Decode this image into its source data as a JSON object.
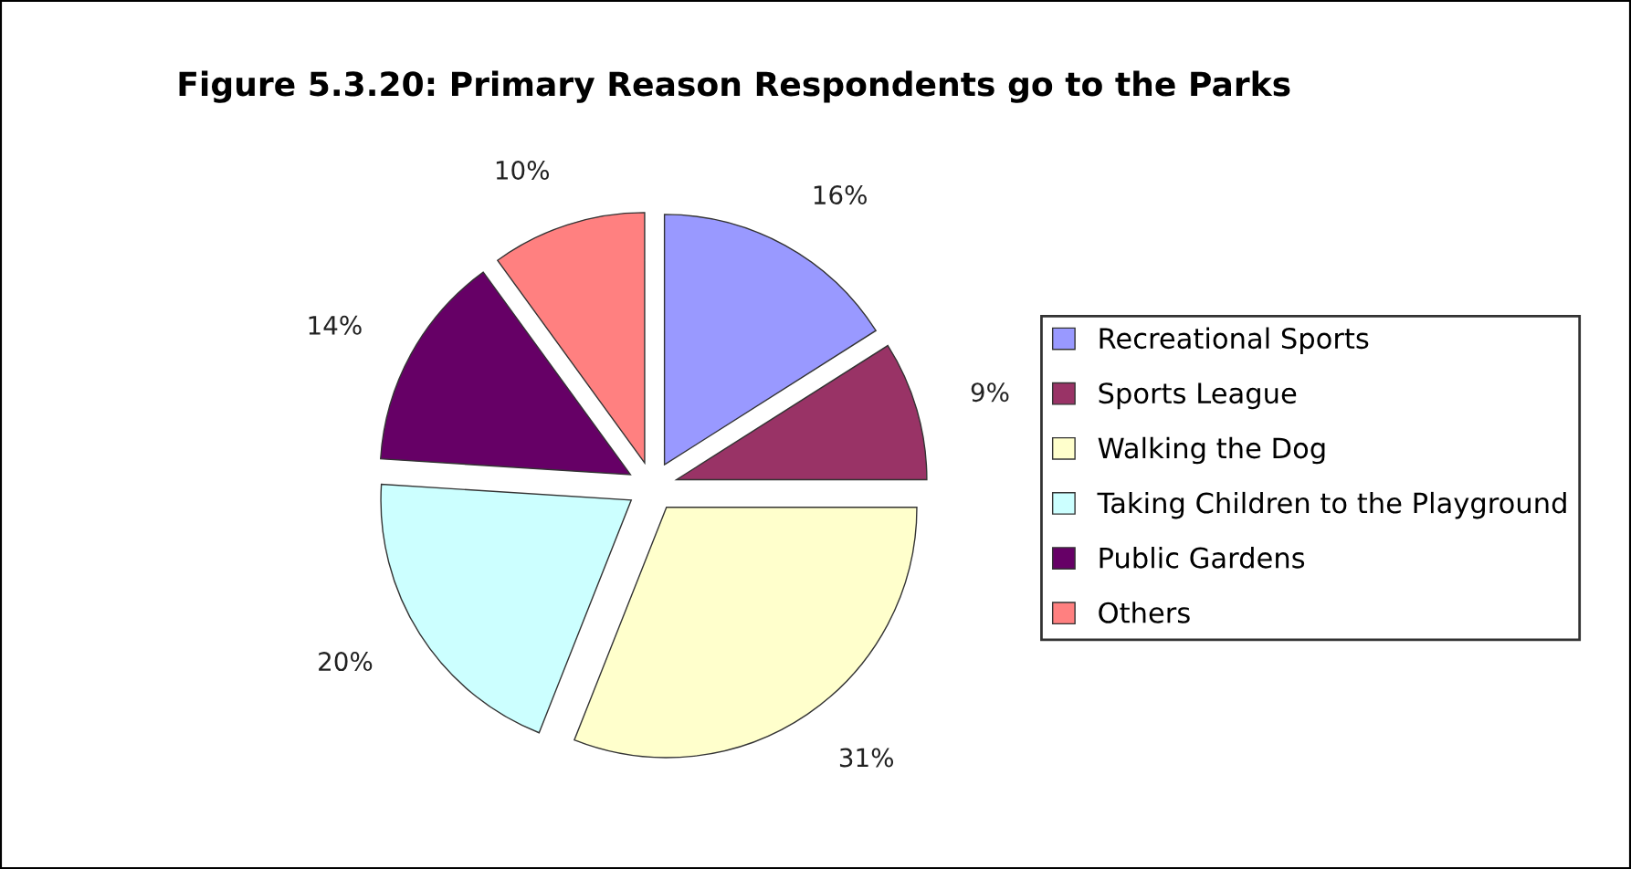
{
  "chart_data": {
    "type": "pie",
    "title": "Figure 5.3.20: Primary Reason Respondents go to the Parks",
    "categories": [
      "Recreational Sports",
      "Sports League",
      "Walking the Dog",
      "Taking Children to the Playground",
      "Public Gardens",
      "Others"
    ],
    "values": [
      16,
      9,
      31,
      20,
      14,
      10
    ],
    "value_labels": [
      "16%",
      "9%",
      "31%",
      "20%",
      "14%",
      "10%"
    ],
    "colors": [
      "#9999ff",
      "#993366",
      "#ffffcc",
      "#ccffff",
      "#660066",
      "#ff8080"
    ],
    "legend": "right"
  }
}
